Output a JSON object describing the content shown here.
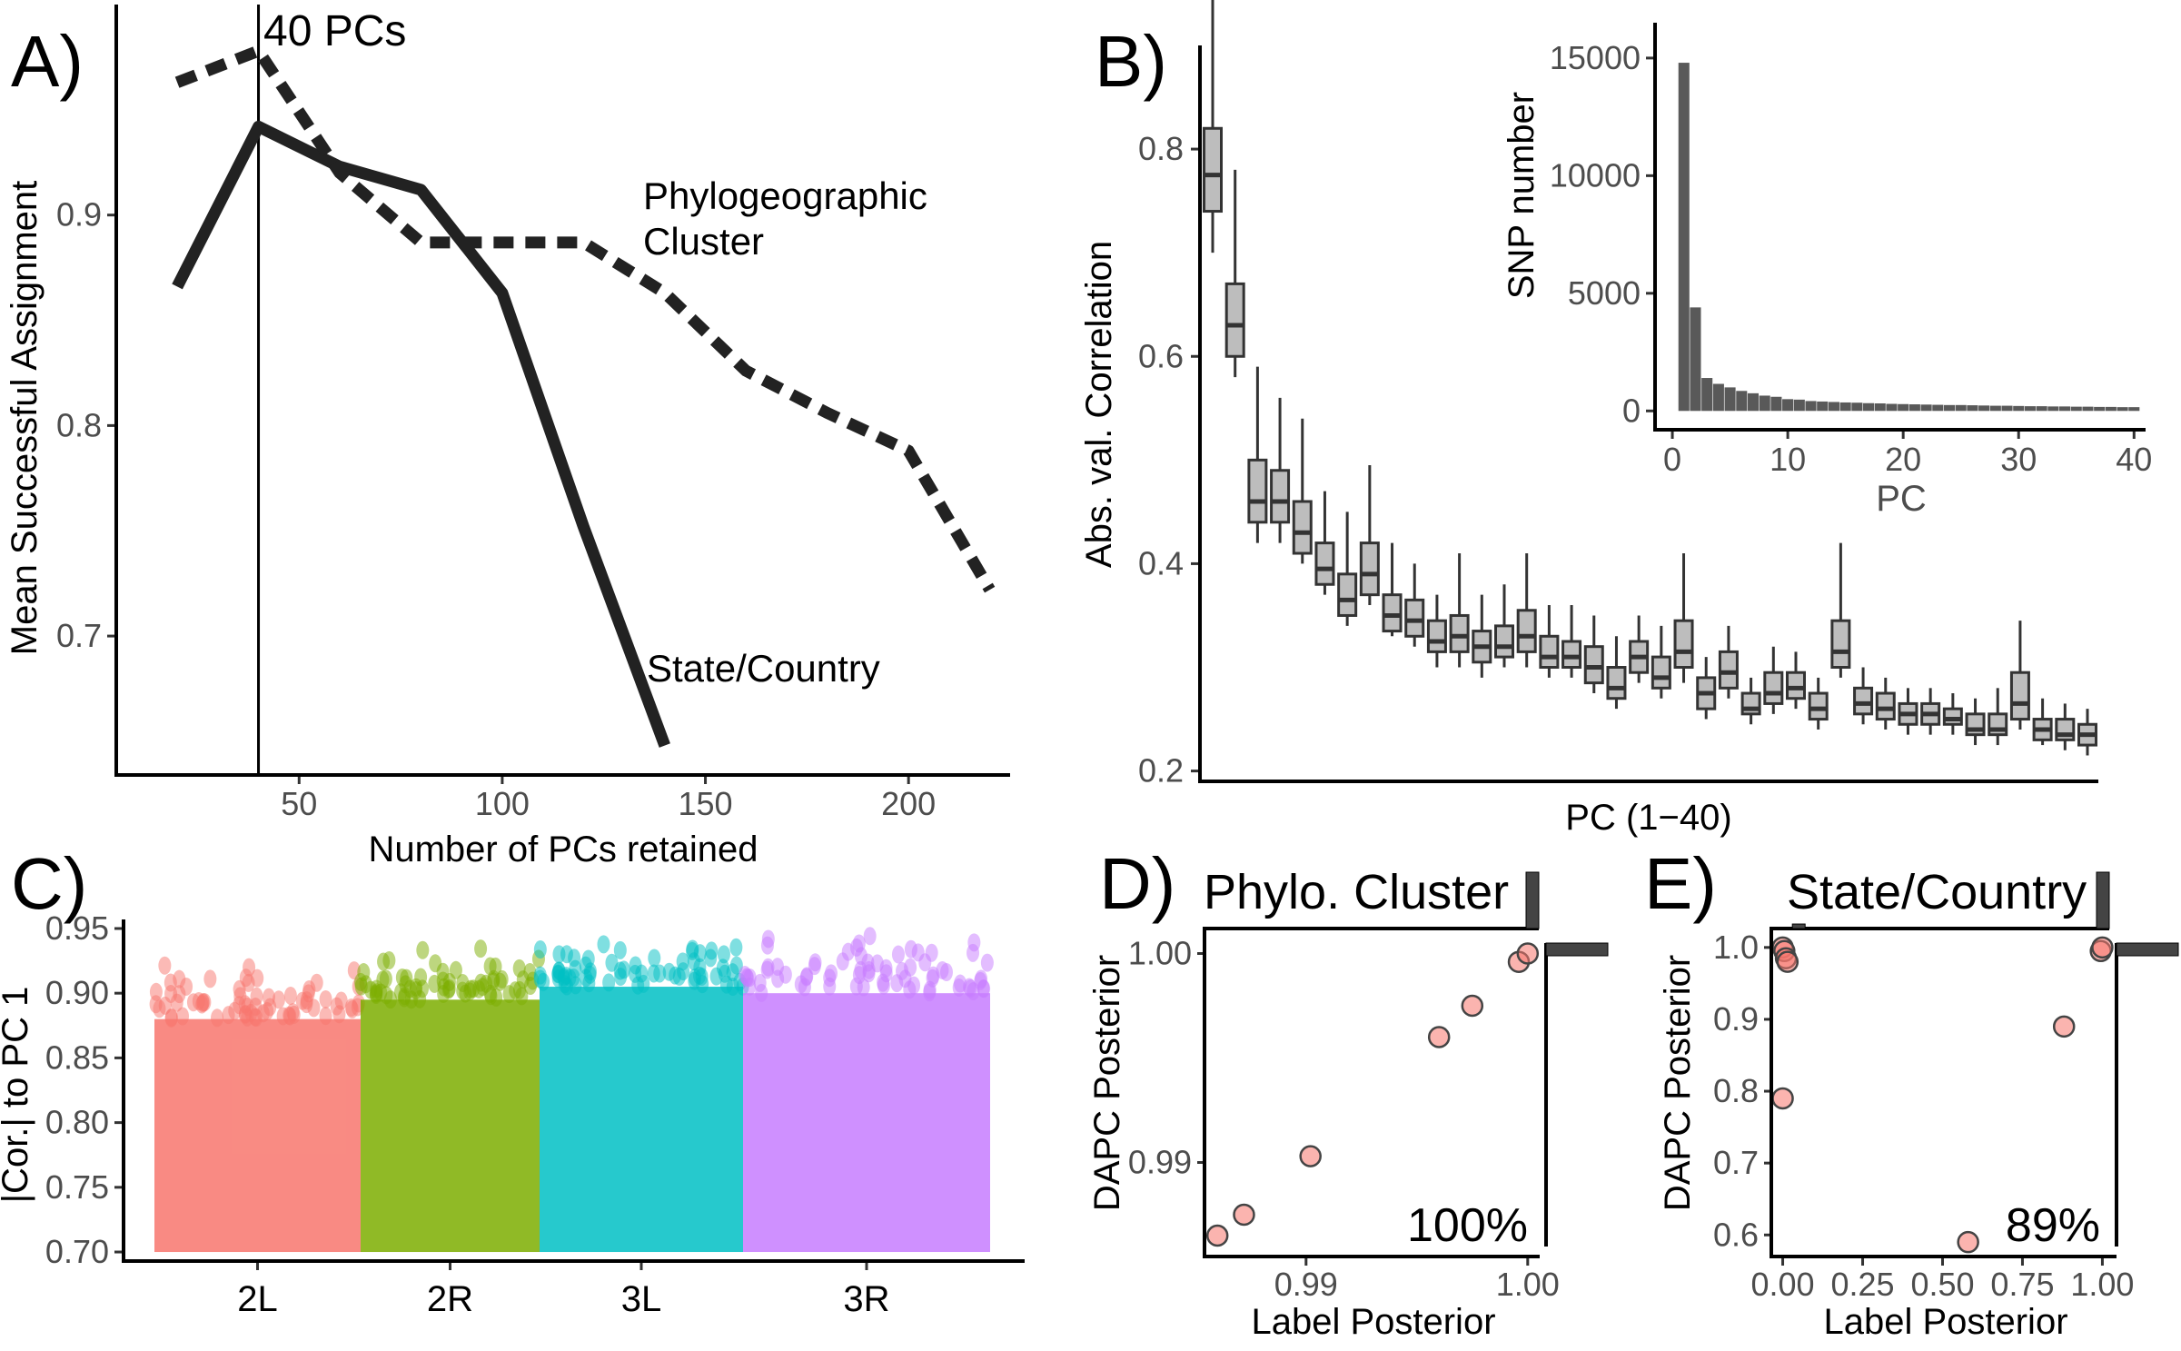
{
  "figure": {
    "panel_tags": [
      "A)",
      "B)",
      "C)",
      "D)",
      "E)"
    ]
  },
  "chart_data": [
    {
      "panel": "A)",
      "type": "line",
      "xlabel": "Number of PCs retained",
      "ylabel": "Mean Successful Assignment",
      "xlim": [
        5,
        225
      ],
      "ylim": [
        0.634,
        1.0
      ],
      "xticks": [
        50,
        100,
        150,
        200
      ],
      "yticks": [
        0.7,
        0.8,
        0.9
      ],
      "vline": {
        "x": 40,
        "label": "40 PCs"
      },
      "series": [
        {
          "name": "State/Country",
          "label_lines": [
            "State/Country"
          ],
          "style": "solid",
          "x": [
            20,
            40,
            60,
            80,
            100,
            120,
            140
          ],
          "y": [
            0.866,
            0.942,
            0.923,
            0.912,
            0.863,
            0.752,
            0.648
          ]
        },
        {
          "name": "Phylogeographic Cluster",
          "label_lines": [
            "Phylogeographic",
            "Cluster"
          ],
          "style": "dashed",
          "x": [
            20,
            40,
            60,
            80,
            100,
            120,
            140,
            160,
            180,
            200,
            220
          ],
          "y": [
            0.963,
            0.978,
            0.92,
            0.887,
            0.887,
            0.887,
            0.863,
            0.826,
            0.806,
            0.788,
            0.722
          ]
        }
      ]
    },
    {
      "panel": "B)",
      "type": "box",
      "xlabel": "PC (1−40)",
      "ylabel": "Abs. val. Correlation",
      "ylim": [
        0.19,
        0.9
      ],
      "yticks": [
        0.2,
        0.4,
        0.6,
        0.8
      ],
      "box_color": "#bdbdbd",
      "boxes": [
        {
          "pc": 1,
          "q1": 0.74,
          "med": 0.775,
          "q3": 0.82,
          "lo": 0.7,
          "hi": 0.95
        },
        {
          "pc": 2,
          "q1": 0.6,
          "med": 0.63,
          "q3": 0.67,
          "lo": 0.58,
          "hi": 0.78
        },
        {
          "pc": 3,
          "q1": 0.44,
          "med": 0.46,
          "q3": 0.5,
          "lo": 0.42,
          "hi": 0.59
        },
        {
          "pc": 4,
          "q1": 0.44,
          "med": 0.46,
          "q3": 0.49,
          "lo": 0.42,
          "hi": 0.56
        },
        {
          "pc": 5,
          "q1": 0.41,
          "med": 0.43,
          "q3": 0.46,
          "lo": 0.4,
          "hi": 0.54
        },
        {
          "pc": 6,
          "q1": 0.38,
          "med": 0.395,
          "q3": 0.42,
          "lo": 0.37,
          "hi": 0.47
        },
        {
          "pc": 7,
          "q1": 0.35,
          "med": 0.365,
          "q3": 0.39,
          "lo": 0.34,
          "hi": 0.45
        },
        {
          "pc": 8,
          "q1": 0.37,
          "med": 0.39,
          "q3": 0.42,
          "lo": 0.36,
          "hi": 0.495
        },
        {
          "pc": 9,
          "q1": 0.335,
          "med": 0.35,
          "q3": 0.37,
          "lo": 0.33,
          "hi": 0.42
        },
        {
          "pc": 10,
          "q1": 0.33,
          "med": 0.345,
          "q3": 0.365,
          "lo": 0.32,
          "hi": 0.4
        },
        {
          "pc": 11,
          "q1": 0.315,
          "med": 0.325,
          "q3": 0.345,
          "lo": 0.3,
          "hi": 0.37
        },
        {
          "pc": 12,
          "q1": 0.315,
          "med": 0.33,
          "q3": 0.35,
          "lo": 0.3,
          "hi": 0.41
        },
        {
          "pc": 13,
          "q1": 0.305,
          "med": 0.32,
          "q3": 0.335,
          "lo": 0.29,
          "hi": 0.37
        },
        {
          "pc": 14,
          "q1": 0.31,
          "med": 0.32,
          "q3": 0.34,
          "lo": 0.3,
          "hi": 0.38
        },
        {
          "pc": 15,
          "q1": 0.315,
          "med": 0.33,
          "q3": 0.355,
          "lo": 0.3,
          "hi": 0.41
        },
        {
          "pc": 16,
          "q1": 0.3,
          "med": 0.31,
          "q3": 0.33,
          "lo": 0.29,
          "hi": 0.36
        },
        {
          "pc": 17,
          "q1": 0.3,
          "med": 0.31,
          "q3": 0.325,
          "lo": 0.29,
          "hi": 0.36
        },
        {
          "pc": 18,
          "q1": 0.285,
          "med": 0.3,
          "q3": 0.32,
          "lo": 0.275,
          "hi": 0.35
        },
        {
          "pc": 19,
          "q1": 0.27,
          "med": 0.28,
          "q3": 0.3,
          "lo": 0.26,
          "hi": 0.33
        },
        {
          "pc": 20,
          "q1": 0.295,
          "med": 0.31,
          "q3": 0.325,
          "lo": 0.285,
          "hi": 0.35
        },
        {
          "pc": 21,
          "q1": 0.28,
          "med": 0.29,
          "q3": 0.31,
          "lo": 0.27,
          "hi": 0.34
        },
        {
          "pc": 22,
          "q1": 0.3,
          "med": 0.315,
          "q3": 0.345,
          "lo": 0.285,
          "hi": 0.41
        },
        {
          "pc": 23,
          "q1": 0.26,
          "med": 0.275,
          "q3": 0.29,
          "lo": 0.25,
          "hi": 0.31
        },
        {
          "pc": 24,
          "q1": 0.28,
          "med": 0.295,
          "q3": 0.315,
          "lo": 0.27,
          "hi": 0.34
        },
        {
          "pc": 25,
          "q1": 0.255,
          "med": 0.26,
          "q3": 0.275,
          "lo": 0.245,
          "hi": 0.29
        },
        {
          "pc": 26,
          "q1": 0.265,
          "med": 0.275,
          "q3": 0.295,
          "lo": 0.255,
          "hi": 0.32
        },
        {
          "pc": 27,
          "q1": 0.27,
          "med": 0.28,
          "q3": 0.295,
          "lo": 0.26,
          "hi": 0.315
        },
        {
          "pc": 28,
          "q1": 0.25,
          "med": 0.26,
          "q3": 0.275,
          "lo": 0.24,
          "hi": 0.29
        },
        {
          "pc": 29,
          "q1": 0.3,
          "med": 0.315,
          "q3": 0.345,
          "lo": 0.29,
          "hi": 0.42
        },
        {
          "pc": 30,
          "q1": 0.255,
          "med": 0.265,
          "q3": 0.28,
          "lo": 0.245,
          "hi": 0.3
        },
        {
          "pc": 31,
          "q1": 0.25,
          "med": 0.26,
          "q3": 0.275,
          "lo": 0.24,
          "hi": 0.29
        },
        {
          "pc": 32,
          "q1": 0.245,
          "med": 0.255,
          "q3": 0.265,
          "lo": 0.235,
          "hi": 0.28
        },
        {
          "pc": 33,
          "q1": 0.245,
          "med": 0.255,
          "q3": 0.265,
          "lo": 0.235,
          "hi": 0.28
        },
        {
          "pc": 34,
          "q1": 0.245,
          "med": 0.25,
          "q3": 0.26,
          "lo": 0.235,
          "hi": 0.275
        },
        {
          "pc": 35,
          "q1": 0.235,
          "med": 0.24,
          "q3": 0.255,
          "lo": 0.225,
          "hi": 0.27
        },
        {
          "pc": 36,
          "q1": 0.235,
          "med": 0.24,
          "q3": 0.255,
          "lo": 0.225,
          "hi": 0.28
        },
        {
          "pc": 37,
          "q1": 0.25,
          "med": 0.265,
          "q3": 0.295,
          "lo": 0.24,
          "hi": 0.345
        },
        {
          "pc": 38,
          "q1": 0.23,
          "med": 0.24,
          "q3": 0.25,
          "lo": 0.225,
          "hi": 0.27
        },
        {
          "pc": 39,
          "q1": 0.23,
          "med": 0.235,
          "q3": 0.25,
          "lo": 0.22,
          "hi": 0.265
        },
        {
          "pc": 40,
          "q1": 0.225,
          "med": 0.235,
          "q3": 0.245,
          "lo": 0.215,
          "hi": 0.26
        }
      ]
    },
    {
      "panel": "B) inset",
      "type": "bar",
      "xlabel": "PC",
      "ylabel": "SNP number",
      "xlim": [
        -1.5,
        41
      ],
      "ylim": [
        -800,
        16000
      ],
      "xticks": [
        0,
        10,
        20,
        30,
        40
      ],
      "yticks": [
        0,
        5000,
        10000,
        15000
      ],
      "bar_color": "#595959",
      "x": [
        1,
        2,
        3,
        4,
        5,
        6,
        7,
        8,
        9,
        10,
        11,
        12,
        13,
        14,
        15,
        16,
        17,
        18,
        19,
        20,
        21,
        22,
        23,
        24,
        25,
        26,
        27,
        28,
        29,
        30,
        31,
        32,
        33,
        34,
        35,
        36,
        37,
        38,
        39,
        40
      ],
      "values": [
        14800,
        4400,
        1400,
        1150,
        1000,
        850,
        750,
        650,
        600,
        500,
        480,
        420,
        400,
        380,
        360,
        350,
        330,
        320,
        300,
        290,
        280,
        270,
        260,
        250,
        250,
        240,
        230,
        220,
        220,
        210,
        200,
        200,
        190,
        190,
        180,
        180,
        170,
        170,
        160,
        160
      ]
    },
    {
      "panel": "C)",
      "type": "scatter",
      "xlabel": "",
      "ylabel": "|Cor.| to PC 1",
      "ylim": [
        0.693,
        0.957
      ],
      "yticks": [
        0.7,
        0.75,
        0.8,
        0.85,
        0.9,
        0.95
      ],
      "categories": [
        "2L",
        "2R",
        "3L",
        "3R"
      ],
      "band_top": [
        0.88,
        0.895,
        0.905,
        0.9
      ],
      "peaks": [
        0.925,
        0.94,
        0.945,
        0.95
      ],
      "colors": [
        "#f8766d",
        "#7cae00",
        "#00bfc4",
        "#c77cff"
      ]
    },
    {
      "panel": "D)",
      "type": "scatter",
      "title": "Phylo. Cluster",
      "xlabel": "Label Posterior",
      "ylabel": "DAPC Posterior",
      "xlim": [
        0.9855,
        1.0005
      ],
      "ylim": [
        0.9855,
        1.0005
      ],
      "xticks": [
        0.99,
        1.0
      ],
      "yticks": [
        0.99,
        1.0
      ],
      "xtick_labels": [
        "0.99",
        "1.00"
      ],
      "ytick_labels": [
        "0.99",
        "1.00"
      ],
      "annotation": "100%",
      "points": [
        [
          0.986,
          0.9865
        ],
        [
          0.9872,
          0.9875
        ],
        [
          0.9902,
          0.9903
        ],
        [
          0.996,
          0.996
        ],
        [
          0.9975,
          0.9975
        ],
        [
          0.9996,
          0.9996
        ],
        [
          1.0,
          1.0
        ]
      ],
      "point_color": "#f8766d",
      "marginal_top": [
        0,
        0,
        0,
        0,
        0,
        0,
        0,
        0,
        0,
        1.0
      ],
      "marginal_right": [
        0,
        0,
        0,
        0,
        0,
        0,
        0,
        0,
        0,
        1.0
      ]
    },
    {
      "panel": "E)",
      "type": "scatter",
      "title": "State/Country",
      "xlabel": "Label Posterior",
      "ylabel": "DAPC Posterior",
      "xlim": [
        -0.03,
        1.03
      ],
      "ylim": [
        0.57,
        1.02
      ],
      "xticks": [
        0.0,
        0.25,
        0.5,
        0.75,
        1.0
      ],
      "yticks": [
        0.6,
        0.7,
        0.8,
        0.9,
        1.0
      ],
      "xtick_labels": [
        "0.00",
        "0.25",
        "0.50",
        "0.75",
        "1.00"
      ],
      "ytick_labels": [
        "0.6",
        "0.7",
        "0.8",
        "0.9",
        "1.0"
      ],
      "annotation": "89%",
      "points": [
        [
          0.0,
          1.0
        ],
        [
          0.005,
          0.995
        ],
        [
          0.01,
          0.985
        ],
        [
          0.015,
          0.98
        ],
        [
          0.0,
          0.79
        ],
        [
          0.58,
          0.59
        ],
        [
          0.88,
          0.89
        ],
        [
          0.995,
          0.995
        ],
        [
          1.0,
          1.0
        ]
      ],
      "point_color": "#f8766d",
      "marginal_top": [
        0.08,
        0,
        0,
        0,
        0,
        0,
        0,
        0,
        0,
        1.0
      ],
      "marginal_right": [
        0,
        0,
        0,
        0,
        0,
        0,
        0,
        0,
        0,
        1.0
      ]
    }
  ]
}
